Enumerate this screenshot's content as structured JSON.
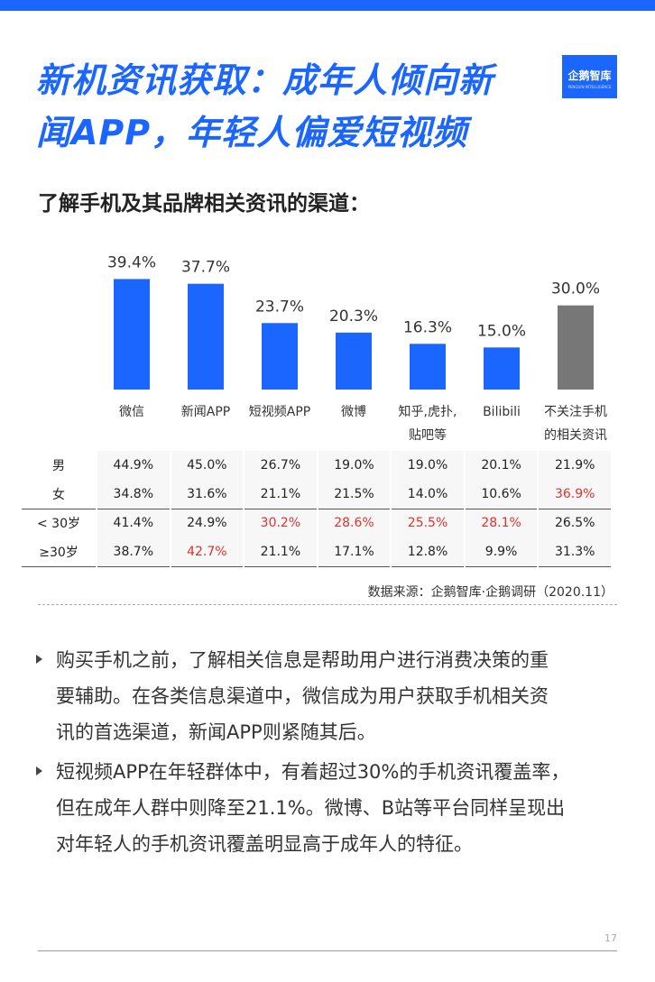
{
  "title": {
    "line1": "新机资讯获取：成年人倾向新",
    "line2": "闻APP，年轻人偏爱短视频"
  },
  "logo": {
    "main": "企鹅智库",
    "sub": "PENGUIN INTELLIGENCE"
  },
  "subtitle": "了解手机及其品牌相关资讯的渠道：",
  "chart_data": {
    "type": "bar",
    "categories": [
      "微信",
      "新闻APP",
      "短视频APP",
      "微博",
      "知乎,虎扑,贴吧等",
      "Bilibili",
      "不关注手机的相关资讯"
    ],
    "category_lines": [
      [
        "微信"
      ],
      [
        "新闻APP"
      ],
      [
        "短视频APP"
      ],
      [
        "微博"
      ],
      [
        "知乎,虎扑,",
        "贴吧等"
      ],
      [
        "Bilibili"
      ],
      [
        "不关注手机",
        "的相关资讯"
      ]
    ],
    "values": [
      39.4,
      37.7,
      23.7,
      20.3,
      16.3,
      15.0,
      30.0
    ],
    "value_labels": [
      "39.4%",
      "37.7%",
      "23.7%",
      "20.3%",
      "16.3%",
      "15.0%",
      "30.0%"
    ],
    "colors": [
      "#1a66ff",
      "#1a66ff",
      "#1a66ff",
      "#1a66ff",
      "#1a66ff",
      "#1a66ff",
      "#777777"
    ],
    "unit": "%",
    "ylim": [
      0,
      45
    ]
  },
  "table": {
    "rows": [
      {
        "label": "男",
        "cells": [
          "44.9%",
          "45.0%",
          "26.7%",
          "19.0%",
          "19.0%",
          "20.1%",
          "21.9%"
        ],
        "highlight": [
          false,
          false,
          false,
          false,
          false,
          false,
          false
        ]
      },
      {
        "label": "女",
        "cells": [
          "34.8%",
          "31.6%",
          "21.1%",
          "21.5%",
          "14.0%",
          "10.6%",
          "36.9%"
        ],
        "highlight": [
          false,
          false,
          false,
          false,
          false,
          false,
          true
        ]
      },
      {
        "label": "< 30岁",
        "cells": [
          "41.4%",
          "24.9%",
          "30.2%",
          "28.6%",
          "25.5%",
          "28.1%",
          "26.5%"
        ],
        "highlight": [
          false,
          false,
          true,
          true,
          true,
          true,
          false
        ]
      },
      {
        "label": "≥30岁",
        "cells": [
          "38.7%",
          "42.7%",
          "21.1%",
          "17.1%",
          "12.8%",
          "9.9%",
          "31.3%"
        ],
        "highlight": [
          false,
          true,
          false,
          false,
          false,
          false,
          false
        ]
      }
    ],
    "highlight_color": "#e03131"
  },
  "source": "数据来源：企鹅智库·企鹅调研（2020.11）",
  "bullets": [
    {
      "lines": [
        "购买手机之前，了解相关信息是帮助用户进行消费决策的重",
        "要辅助。在各类信息渠道中，微信成为用户获取手机相关资",
        "讯的首选渠道，新闻APP则紧随其后。"
      ]
    },
    {
      "lines": [
        "短视频APP在年轻群体中，有着超过30%的手机资讯覆盖率，",
        "但在成年人群中则降至21.1%。微博、B站等平台同样呈现出",
        "对年轻人的手机资讯覆盖明显高于成年人的特征。"
      ]
    }
  ],
  "page_number": "17",
  "colors": {
    "accent": "#1a66ff",
    "gray_bar": "#777777",
    "highlight": "#e03131"
  }
}
